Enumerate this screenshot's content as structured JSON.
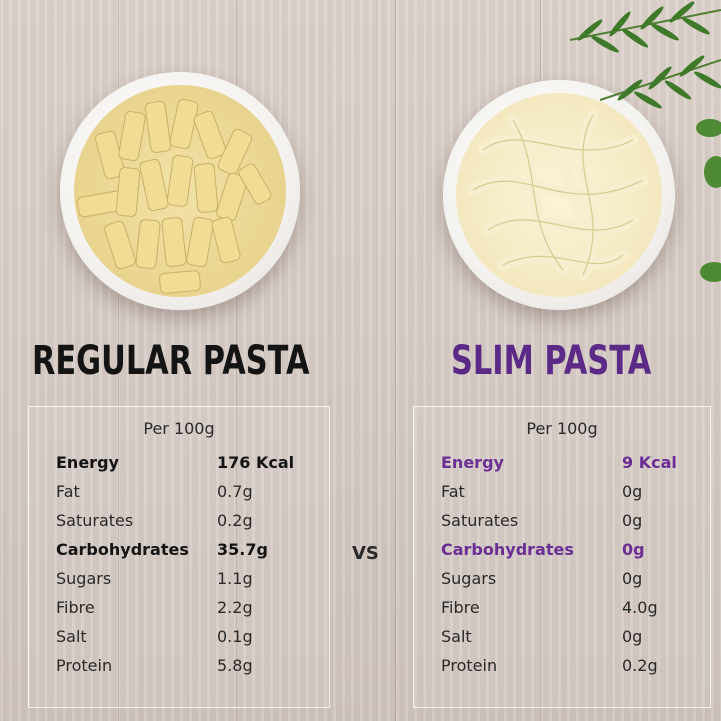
{
  "regular": {
    "heading": "REGULAR PASTA",
    "per": "Per 100g",
    "rows": [
      {
        "label": "Energy",
        "value": "176 Kcal"
      },
      {
        "label": "Fat",
        "value": "0.7g"
      },
      {
        "label": "Saturates",
        "value": "0.2g"
      },
      {
        "label": "Carbohydrates",
        "value": "35.7g"
      },
      {
        "label": "Sugars",
        "value": "1.1g"
      },
      {
        "label": "Fibre",
        "value": "2.2g"
      },
      {
        "label": "Salt",
        "value": "0.1g"
      },
      {
        "label": "Protein",
        "value": "5.8g"
      }
    ]
  },
  "vs": "VS",
  "slim": {
    "heading": "SLIM PASTA",
    "per": "Per 100g",
    "rows": [
      {
        "label": "Energy",
        "value": "9 Kcal"
      },
      {
        "label": "Fat",
        "value": "0g"
      },
      {
        "label": "Saturates",
        "value": "0g"
      },
      {
        "label": "Carbohydrates",
        "value": "0g"
      },
      {
        "label": "Sugars",
        "value": "0g"
      },
      {
        "label": "Fibre",
        "value": "4.0g"
      },
      {
        "label": "Salt",
        "value": "0g"
      },
      {
        "label": "Protein",
        "value": "0.2g"
      }
    ]
  },
  "colors": {
    "heading_dark": "#141414",
    "slim_purple": "#5b2a86",
    "pasta_yellow": "#e8d48e",
    "herb_green": "#3f7a2a"
  },
  "icons": [
    "rigatoni-bowl-image",
    "noodle-bowl-image",
    "rosemary-herb-image"
  ]
}
